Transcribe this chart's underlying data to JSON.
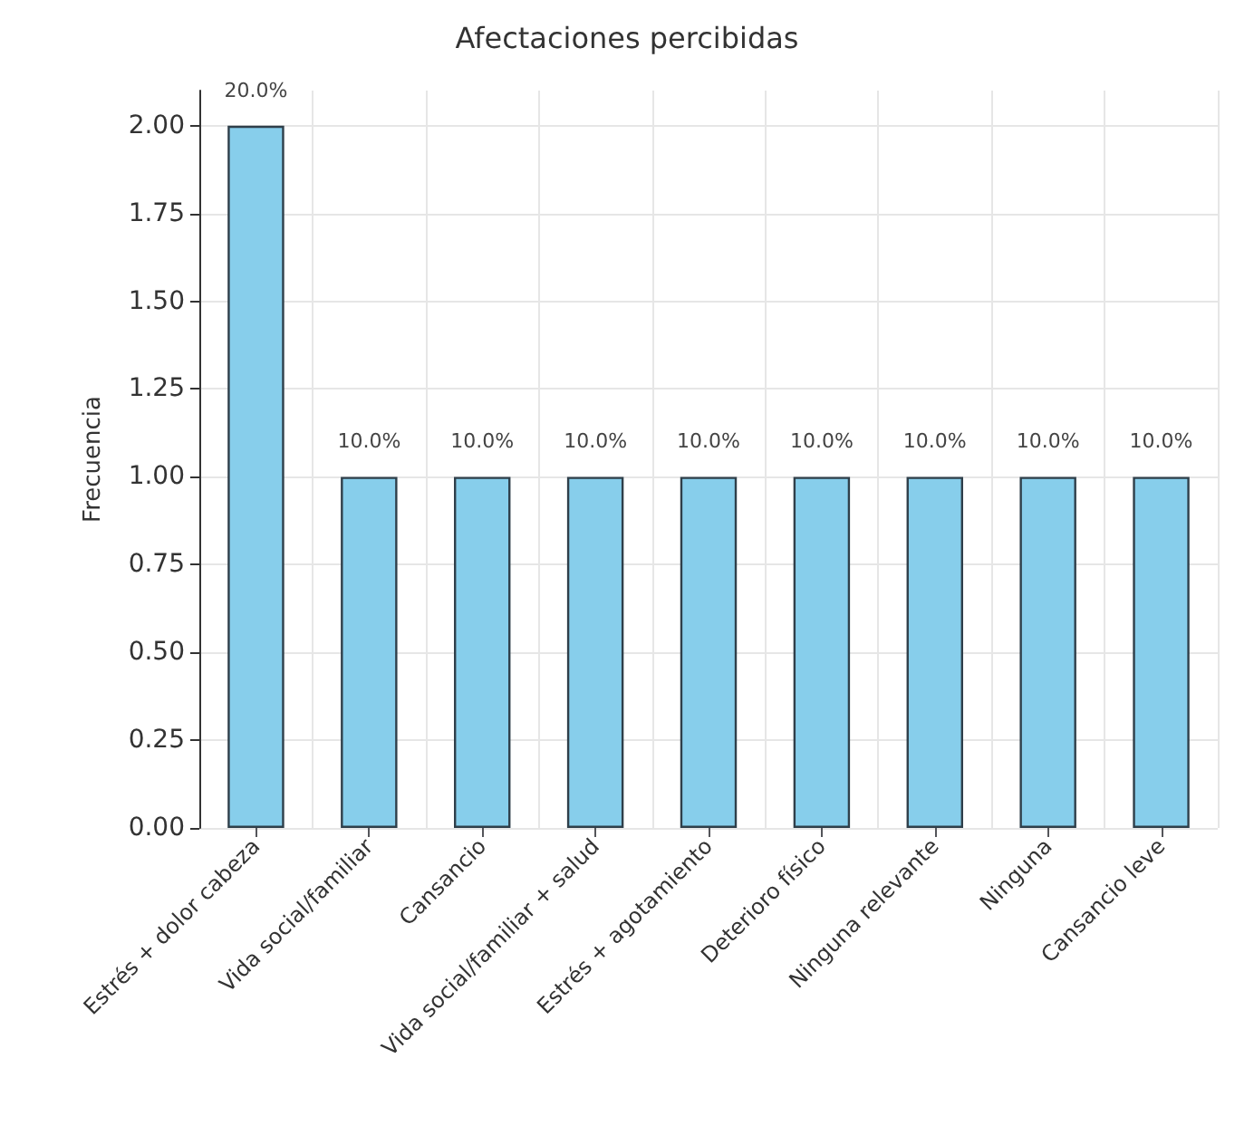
{
  "chart_data": {
    "type": "bar",
    "title": "Afectaciones percibidas",
    "ylabel": "Frecuencia",
    "categories": [
      "Estrés + dolor cabeza",
      "Vida social/familiar",
      "Cansancio",
      "Vida social/familiar + salud",
      "Estrés + agotamiento",
      "Deterioro físico",
      "Ninguna relevante",
      "Ninguna",
      "Cansancio leve"
    ],
    "values": [
      2,
      1,
      1,
      1,
      1,
      1,
      1,
      1,
      1
    ],
    "annotations": [
      {
        "text": "20.0%",
        "x": "Estrés + dolor cabeza",
        "y": 2
      },
      {
        "text": "10.0%",
        "x": "Vida social/familiar",
        "y": 1
      },
      {
        "text": "10.0%",
        "x": "Cansancio",
        "y": 1
      },
      {
        "text": "10.0%",
        "x": "Vida social/familiar + salud",
        "y": 1
      },
      {
        "text": "10.0%",
        "x": "Estrés + agotamiento",
        "y": 1
      },
      {
        "text": "10.0%",
        "x": "Deterioro físico",
        "y": 1
      },
      {
        "text": "10.0%",
        "x": "Ninguna relevante",
        "y": 1
      },
      {
        "text": "10.0%",
        "x": "Ninguna",
        "y": 1
      },
      {
        "text": "10.0%",
        "x": "Cansancio leve",
        "y": 1
      }
    ],
    "color": "#87ceeb",
    "ylim": [
      0,
      2.1
    ],
    "yticks": [
      {
        "value": 0,
        "label": "0.00"
      },
      {
        "value": 0.25,
        "label": "0.25"
      },
      {
        "value": 0.5,
        "label": "0.50"
      },
      {
        "value": 0.75,
        "label": "0.75"
      },
      {
        "value": 1,
        "label": "1.00"
      },
      {
        "value": 1.25,
        "label": "1.25"
      },
      {
        "value": 1.5,
        "label": "1.50"
      },
      {
        "value": 1.75,
        "label": "1.75"
      },
      {
        "value": 2,
        "label": "2.00"
      }
    ],
    "grid": true
  }
}
